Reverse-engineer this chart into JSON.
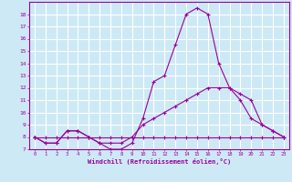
{
  "xlabel": "Windchill (Refroidissement éolien,°C)",
  "bg_color": "#cde9f6",
  "line_color": "#990099",
  "grid_color": "#ffffff",
  "hours": [
    0,
    1,
    2,
    3,
    4,
    5,
    6,
    7,
    8,
    9,
    10,
    11,
    12,
    13,
    14,
    15,
    16,
    17,
    18,
    19,
    20,
    21,
    22,
    23
  ],
  "line1": [
    8,
    7.5,
    7.5,
    8.5,
    8.5,
    8,
    7.5,
    7,
    7,
    7.5,
    9.5,
    12.5,
    13,
    15.5,
    18,
    18.5,
    18,
    14,
    12,
    11,
    9.5,
    9,
    8.5,
    8
  ],
  "line2": [
    8,
    7.5,
    7.5,
    8.5,
    8.5,
    8,
    7.5,
    7.5,
    7.5,
    8,
    9,
    9.5,
    10,
    10.5,
    11,
    11.5,
    12,
    12,
    12,
    11.5,
    11,
    9,
    8.5,
    8
  ],
  "line3": [
    8,
    8,
    8,
    8,
    8,
    8,
    8,
    8,
    8,
    8,
    8,
    8,
    8,
    8,
    8,
    8,
    8,
    8,
    8,
    8,
    8,
    8,
    8,
    8
  ],
  "ylim": [
    7,
    19
  ],
  "yticks": [
    7,
    8,
    9,
    10,
    11,
    12,
    13,
    14,
    15,
    16,
    17,
    18
  ],
  "xlim": [
    -0.5,
    23.5
  ]
}
